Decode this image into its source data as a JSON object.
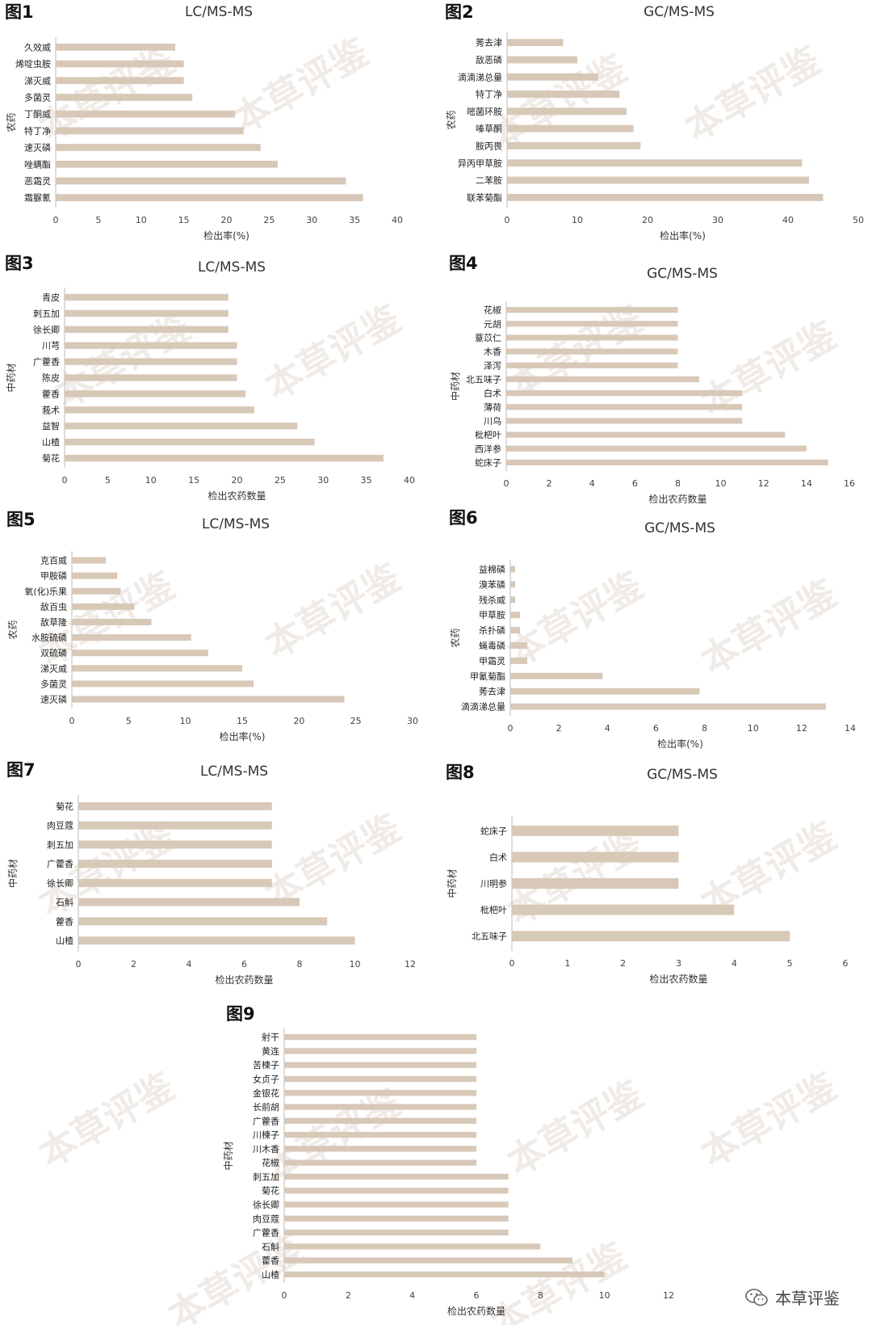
{
  "watermark": "本草评鉴",
  "brand": {
    "text": "本草评鉴",
    "icon": "wechat-icon"
  },
  "bar_color": "#d8c8b8",
  "chart_data": [
    {
      "type": "bar",
      "orientation": "horizontal",
      "figure_label": "图1",
      "title": "LC/MS-MS",
      "ylabel": "农药",
      "xlabel": "检出率(%)",
      "xlim": [
        0,
        40
      ],
      "xticks": [
        0,
        5,
        10,
        15,
        20,
        25,
        30,
        35,
        40
      ],
      "categories": [
        "久效威",
        "烯啶虫胺",
        "涕灭威",
        "多菌灵",
        "丁酮威",
        "特丁净",
        "速灭磷",
        "唑螨酯",
        "恶霜灵",
        "霜脲氰"
      ],
      "values": [
        14,
        15,
        15,
        16,
        21,
        22,
        24,
        26,
        34,
        36
      ]
    },
    {
      "type": "bar",
      "orientation": "horizontal",
      "figure_label": "图2",
      "title": "GC/MS-MS",
      "ylabel": "农药",
      "xlabel": "检出率(%)",
      "xlim": [
        0,
        50
      ],
      "xticks": [
        0,
        10,
        20,
        30,
        40,
        50
      ],
      "categories": [
        "莠去津",
        "敌恶磷",
        "滴滴涕总量",
        "特丁净",
        "嘧菌环胺",
        "嗪草酮",
        "胺丙畏",
        "异丙甲草胺",
        "二苯胺",
        "联苯菊酯"
      ],
      "values": [
        8,
        10,
        13,
        16,
        17,
        18,
        19,
        42,
        43,
        45
      ]
    },
    {
      "type": "bar",
      "orientation": "horizontal",
      "figure_label": "图3",
      "title": "LC/MS-MS",
      "ylabel": "中药材",
      "xlabel": "检出农药数量",
      "xlim": [
        0,
        40
      ],
      "xticks": [
        0,
        5,
        10,
        15,
        20,
        25,
        30,
        35,
        40
      ],
      "categories": [
        "青皮",
        "刺五加",
        "徐长卿",
        "川芎",
        "广藿香",
        "陈皮",
        "藿香",
        "莪术",
        "益智",
        "山楂",
        "菊花"
      ],
      "values": [
        19,
        19,
        19,
        20,
        20,
        20,
        21,
        22,
        27,
        29,
        37
      ]
    },
    {
      "type": "bar",
      "orientation": "horizontal",
      "figure_label": "图4",
      "title": "GC/MS-MS",
      "ylabel": "中药材",
      "xlabel": "检出农药数量",
      "xlim": [
        0,
        16
      ],
      "xticks": [
        0,
        2,
        4,
        6,
        8,
        10,
        12,
        14,
        16
      ],
      "categories": [
        "花椒",
        "元胡",
        "薏苡仁",
        "木香",
        "泽泻",
        "北五味子",
        "白术",
        "薄荷",
        "川乌",
        "枇杷叶",
        "西洋参",
        "蛇床子"
      ],
      "values": [
        8,
        8,
        8,
        8,
        8,
        9,
        11,
        11,
        11,
        13,
        14,
        15
      ]
    },
    {
      "type": "bar",
      "orientation": "horizontal",
      "figure_label": "图5",
      "title": "LC/MS-MS",
      "ylabel": "农药",
      "xlabel": "检出率(%)",
      "xlim": [
        0,
        30
      ],
      "xticks": [
        0,
        5,
        10,
        15,
        20,
        25,
        30
      ],
      "categories": [
        "克百威",
        "甲胺磷",
        "氧(化)乐果",
        "敌百虫",
        "敌草隆",
        "水胺硫磷",
        "双硫磷",
        "涕灭威",
        "多菌灵",
        "速灭磷"
      ],
      "values": [
        3,
        4,
        4.3,
        5.5,
        7,
        10.5,
        12,
        15,
        16,
        24
      ]
    },
    {
      "type": "bar",
      "orientation": "horizontal",
      "figure_label": "图6",
      "title": "GC/MS-MS",
      "ylabel": "农药",
      "xlabel": "检出率(%)",
      "xlim": [
        0,
        14
      ],
      "xticks": [
        0,
        2,
        4,
        6,
        8,
        10,
        12,
        14
      ],
      "categories": [
        "益棉磷",
        "溴苯磷",
        "残杀威",
        "甲草胺",
        "杀扑磷",
        "蝇毒磷",
        "甲霜灵",
        "甲氰菊酯",
        "莠去津",
        "滴滴涕总量"
      ],
      "values": [
        0.2,
        0.2,
        0.2,
        0.4,
        0.4,
        0.7,
        0.7,
        3.8,
        7.8,
        13
      ]
    },
    {
      "type": "bar",
      "orientation": "horizontal",
      "figure_label": "图7",
      "title": "LC/MS-MS",
      "ylabel": "中药材",
      "xlabel": "检出农药数量",
      "xlim": [
        0,
        12
      ],
      "xticks": [
        0,
        2,
        4,
        6,
        8,
        10,
        12
      ],
      "categories": [
        "菊花",
        "肉豆蔻",
        "刺五加",
        "广藿香",
        "徐长卿",
        "石斛",
        "藿香",
        "山楂"
      ],
      "values": [
        7,
        7,
        7,
        7,
        7,
        8,
        9,
        10
      ]
    },
    {
      "type": "bar",
      "orientation": "horizontal",
      "figure_label": "图8",
      "title": "GC/MS-MS",
      "ylabel": "中药材",
      "xlabel": "检出农药数量",
      "xlim": [
        0,
        6
      ],
      "xticks": [
        0,
        1,
        2,
        3,
        4,
        5,
        6
      ],
      "categories": [
        "蛇床子",
        "白术",
        "川明参",
        "枇杷叶",
        "北五味子"
      ],
      "values": [
        3,
        3,
        3,
        4,
        5
      ]
    },
    {
      "type": "bar",
      "orientation": "horizontal",
      "figure_label": "图9",
      "title": "",
      "ylabel": "中药材",
      "xlabel": "检出农药数量",
      "xlim": [
        0,
        12
      ],
      "xticks": [
        0,
        2,
        4,
        6,
        8,
        10,
        12
      ],
      "categories": [
        "射干",
        "黄连",
        "苦楝子",
        "女贞子",
        "金银花",
        "长前胡",
        "广藿香",
        "川楝子",
        "川木香",
        "花椒",
        "刺五加",
        "菊花",
        "徐长卿",
        "肉豆蔻",
        "广藿香",
        "石斛",
        "藿香",
        "山楂"
      ],
      "values": [
        6,
        6,
        6,
        6,
        6,
        6,
        6,
        6,
        6,
        6,
        7,
        7,
        7,
        7,
        7,
        8,
        9,
        10
      ]
    }
  ]
}
